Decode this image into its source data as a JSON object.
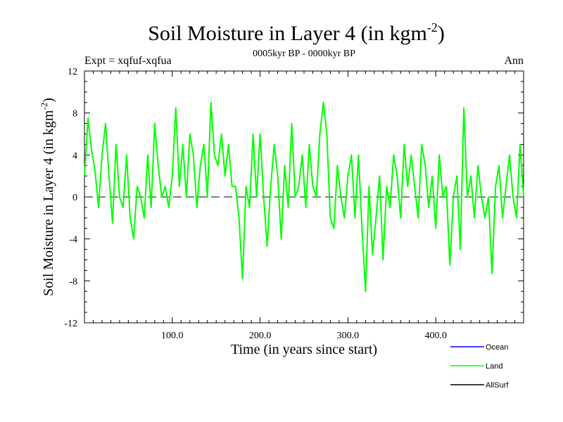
{
  "chart_data": {
    "type": "line",
    "title": "Soil Moisture in Layer 4 (in kgm",
    "title_sup": "-2",
    "title_close": ")",
    "subtitle_left": "Expt = xqfuf-xqfua",
    "subtitle_center": "0005kyr BP - 0000kyr BP",
    "subtitle_right": "Ann",
    "xlabel": "Time (in years since start)",
    "ylabel": "Soil Moisture in Layer 4 (in kgm",
    "ylabel_sup": "-2",
    "ylabel_close": ")",
    "xlim": [
      0,
      500
    ],
    "ylim": [
      -12,
      12
    ],
    "xticks": [
      100,
      200,
      300,
      400
    ],
    "xtick_labels": [
      "100.0",
      "200.0",
      "300.0",
      "400.0"
    ],
    "yticks": [
      -12,
      -8,
      -4,
      0,
      4,
      8,
      12
    ],
    "ytick_labels": [
      "-12",
      "-8",
      "-4",
      "0",
      "4",
      "8",
      "12"
    ],
    "reference_line": 0,
    "legend": [
      "Ocean",
      "Land",
      "AllSurf"
    ],
    "series": [
      {
        "name": "Land",
        "color": "#00ff00",
        "x": [
          0,
          4,
          8,
          12,
          16,
          20,
          24,
          28,
          32,
          36,
          40,
          44,
          48,
          52,
          56,
          60,
          64,
          68,
          72,
          76,
          80,
          84,
          88,
          92,
          96,
          100,
          104,
          108,
          112,
          116,
          120,
          124,
          128,
          132,
          136,
          140,
          144,
          148,
          152,
          156,
          160,
          164,
          168,
          172,
          176,
          180,
          184,
          188,
          192,
          196,
          200,
          204,
          208,
          212,
          216,
          220,
          224,
          228,
          232,
          236,
          240,
          244,
          248,
          252,
          256,
          260,
          264,
          268,
          272,
          276,
          280,
          284,
          288,
          292,
          296,
          300,
          304,
          308,
          312,
          316,
          320,
          324,
          328,
          332,
          336,
          340,
          344,
          348,
          352,
          356,
          360,
          364,
          368,
          372,
          376,
          380,
          384,
          388,
          392,
          396,
          400,
          404,
          408,
          412,
          416,
          420,
          424,
          428,
          432,
          436,
          440,
          444,
          448,
          452,
          456,
          460,
          464,
          468,
          472,
          476,
          480,
          484,
          488,
          492,
          496,
          500
        ],
        "values": [
          2,
          7.5,
          4.5,
          2.5,
          -1,
          4,
          7,
          2,
          -2.5,
          5,
          0,
          -1,
          4,
          -2,
          -4,
          1,
          0,
          -2,
          4,
          -1,
          7,
          3,
          0,
          1,
          -1,
          2,
          8.5,
          1,
          5,
          0,
          6,
          4,
          -1,
          3,
          5,
          0,
          9,
          4,
          3,
          6,
          2,
          5,
          1,
          1,
          -2,
          -7.8,
          1,
          -1,
          6,
          0,
          6,
          0,
          -4.7,
          1,
          5,
          2,
          -4,
          3,
          -1,
          7,
          0,
          1,
          4,
          -1,
          5,
          1,
          0,
          6,
          9,
          6,
          -2,
          -3,
          3,
          0,
          -2,
          2,
          4,
          -2,
          4,
          -3,
          -9,
          1,
          -5.5,
          -2,
          2,
          -6,
          1,
          -1,
          4,
          2,
          -2,
          5,
          1,
          4,
          1,
          -2,
          5,
          3,
          -1,
          2,
          -3,
          4,
          0,
          1,
          -6.5,
          0,
          2,
          -5,
          8.5,
          0,
          2,
          -2,
          3,
          0,
          -2,
          0,
          -7.3,
          1,
          3,
          -2,
          1,
          4,
          0,
          -2,
          5,
          0
        ]
      }
    ]
  }
}
